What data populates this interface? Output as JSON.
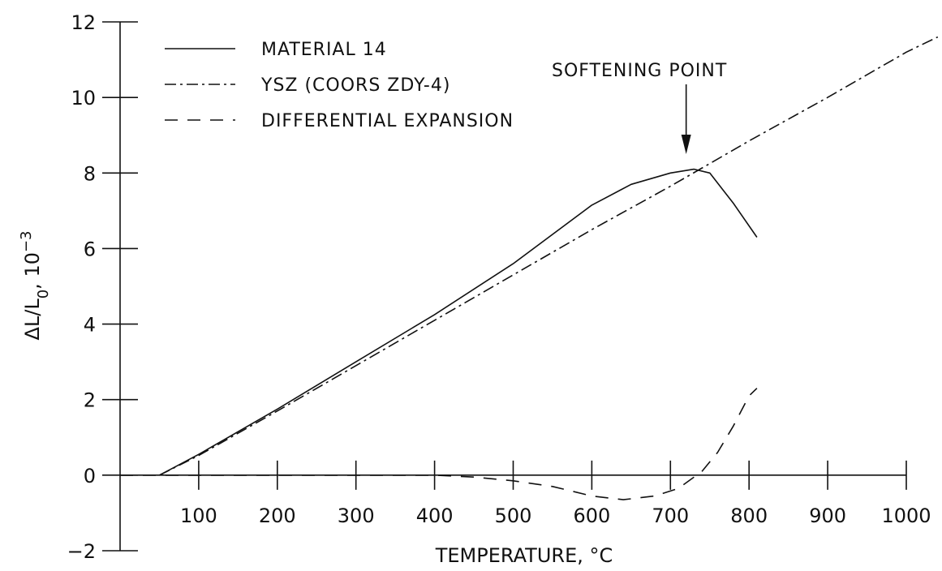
{
  "chart_data": {
    "type": "line",
    "title": "",
    "xlabel": "TEMPERATURE, °C",
    "ylabel": "ΔL/L",
    "ylabel_sub": "0",
    "ylabel_suffix": ", 10",
    "ylabel_exp": "−3",
    "xlim": [
      0,
      1000
    ],
    "ylim": [
      -2,
      12
    ],
    "x_ticks": [
      100,
      200,
      300,
      400,
      500,
      600,
      700,
      800,
      900,
      1000
    ],
    "y_ticks": [
      -2,
      0,
      2,
      4,
      6,
      8,
      10,
      12
    ],
    "y_tick_labels": [
      "−2",
      "0",
      "2",
      "4",
      "6",
      "8",
      "10",
      "12"
    ],
    "grid": false,
    "legend_position": "top-left",
    "series": [
      {
        "name": "MATERIAL 14",
        "style": "solid",
        "x": [
          50,
          100,
          200,
          300,
          400,
          500,
          600,
          650,
          700,
          730,
          750,
          780,
          810
        ],
        "y": [
          0,
          0.55,
          1.75,
          3.0,
          4.25,
          5.6,
          7.15,
          7.7,
          8.0,
          8.1,
          8.0,
          7.2,
          6.3
        ]
      },
      {
        "name": "YSZ (COORS ZDY-4)",
        "style": "dashdot",
        "x": [
          50,
          100,
          200,
          300,
          400,
          500,
          600,
          700,
          800,
          900,
          1000,
          1040
        ],
        "y": [
          0,
          0.52,
          1.7,
          2.9,
          4.1,
          5.3,
          6.5,
          7.65,
          8.85,
          10.0,
          11.2,
          11.6
        ]
      },
      {
        "name": "DIFFERENTIAL EXPANSION",
        "style": "dashed",
        "x": [
          0,
          50,
          400,
          450,
          500,
          550,
          600,
          640,
          680,
          710,
          740,
          760,
          780,
          800,
          810
        ],
        "y": [
          0,
          0,
          0,
          -0.05,
          -0.15,
          -0.3,
          -0.55,
          -0.65,
          -0.55,
          -0.35,
          0.1,
          0.6,
          1.3,
          2.1,
          2.3
        ]
      }
    ],
    "annotations": [
      {
        "text": "SOFTENING POINT",
        "arrow_to": {
          "x": 720,
          "y": 8.5
        }
      }
    ]
  }
}
